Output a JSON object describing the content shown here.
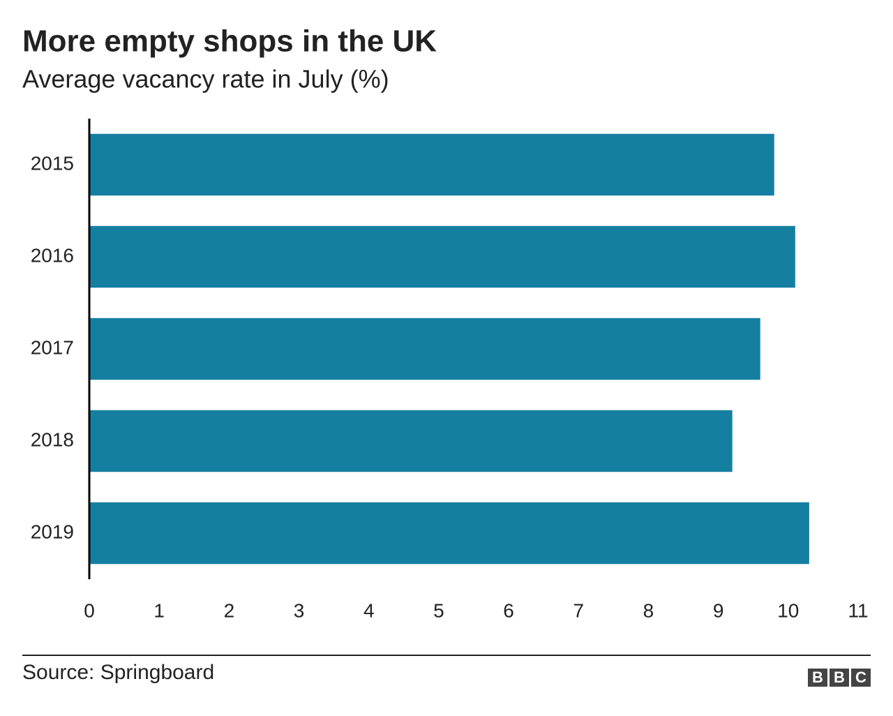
{
  "chart_data": {
    "type": "bar",
    "orientation": "horizontal",
    "title": "More empty shops in the UK",
    "subtitle": "Average vacancy rate in July (%)",
    "categories": [
      "2015",
      "2016",
      "2017",
      "2018",
      "2019"
    ],
    "values": [
      9.8,
      10.1,
      9.6,
      9.2,
      10.3
    ],
    "color": "#157fa1",
    "xlim": [
      0,
      11
    ],
    "xticks": [
      0,
      1,
      2,
      3,
      4,
      5,
      6,
      7,
      8,
      9,
      10,
      11
    ],
    "grid": false,
    "source": "Source: Springboard",
    "logo": [
      "B",
      "B",
      "C"
    ]
  }
}
